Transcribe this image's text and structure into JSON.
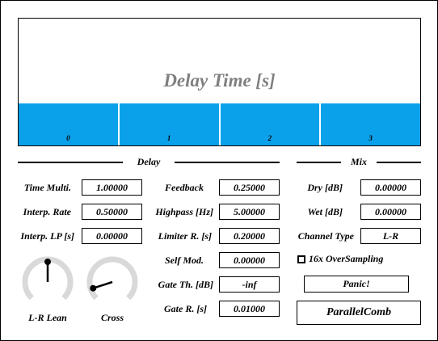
{
  "display": {
    "title": "Delay Time [s]",
    "taps": [
      {
        "label": "0"
      },
      {
        "label": "1"
      },
      {
        "label": "2"
      },
      {
        "label": "3"
      }
    ],
    "bar_color": "#0aa1ea"
  },
  "sections": {
    "delay": "Delay",
    "mix": "Mix"
  },
  "delay_left": [
    {
      "label": "Time Multi.",
      "value": "1.00000"
    },
    {
      "label": "Interp. Rate",
      "value": "0.50000"
    },
    {
      "label": "Interp. LP [s]",
      "value": "0.00000"
    }
  ],
  "delay_right": [
    {
      "label": "Feedback",
      "value": "0.25000"
    },
    {
      "label": "Highpass [Hz]",
      "value": "5.00000"
    },
    {
      "label": "Limiter R. [s]",
      "value": "0.20000"
    },
    {
      "label": "Self Mod.",
      "value": "0.00000"
    },
    {
      "label": "Gate Th. [dB]",
      "value": "-inf"
    },
    {
      "label": "Gate R. [s]",
      "value": "0.01000"
    }
  ],
  "mix": [
    {
      "label": "Dry [dB]",
      "value": "0.00000"
    },
    {
      "label": "Wet [dB]",
      "value": "0.00000"
    },
    {
      "label": "Channel Type",
      "value": "L-R"
    }
  ],
  "knobs": {
    "lr_lean": {
      "label": "L-R Lean",
      "value_fraction": 0.5
    },
    "cross": {
      "label": "Cross",
      "value_fraction": 0.1
    }
  },
  "oversampling": {
    "label": "16x OverSampling",
    "checked": false
  },
  "panic_label": "Panic!",
  "plugin_name": "ParallelComb"
}
